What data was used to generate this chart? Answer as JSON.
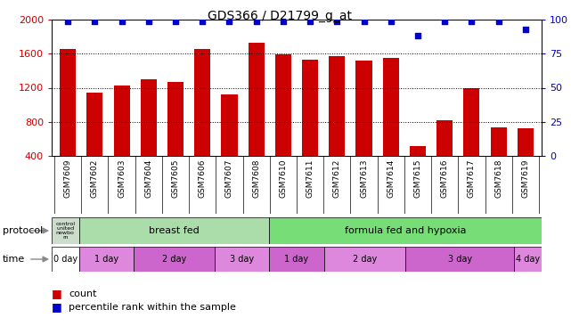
{
  "title": "GDS366 / D21799_g_at",
  "samples": [
    "GSM7609",
    "GSM7602",
    "GSM7603",
    "GSM7604",
    "GSM7605",
    "GSM7606",
    "GSM7607",
    "GSM7608",
    "GSM7610",
    "GSM7611",
    "GSM7612",
    "GSM7613",
    "GSM7614",
    "GSM7615",
    "GSM7616",
    "GSM7617",
    "GSM7618",
    "GSM7619"
  ],
  "counts": [
    1660,
    1140,
    1230,
    1300,
    1270,
    1650,
    1120,
    1730,
    1590,
    1530,
    1570,
    1520,
    1550,
    520,
    820,
    1190,
    730,
    720
  ],
  "percentiles": [
    99,
    99,
    99,
    99,
    99,
    99,
    99,
    99,
    99,
    99,
    99,
    99,
    99,
    88,
    99,
    99,
    99,
    93
  ],
  "bar_color": "#cc0000",
  "dot_color": "#0000cc",
  "ylim_left": [
    400,
    2000
  ],
  "ylim_right": [
    0,
    100
  ],
  "yticks_left": [
    400,
    800,
    1200,
    1600,
    2000
  ],
  "yticks_right": [
    0,
    25,
    50,
    75,
    100
  ],
  "protocol_row": {
    "control_label": "control\nunited\nnewbo\nrn",
    "groups": [
      {
        "label": "breast fed",
        "start": 1,
        "end": 8,
        "color": "#aaddaa"
      },
      {
        "label": "formula fed and hypoxia",
        "start": 8,
        "end": 18,
        "color": "#77dd77"
      }
    ]
  },
  "time_row": {
    "segments": [
      {
        "label": "0 day",
        "start": 0,
        "end": 1,
        "color": "#ffffff"
      },
      {
        "label": "1 day",
        "start": 1,
        "end": 3,
        "color": "#dd88dd"
      },
      {
        "label": "2 day",
        "start": 3,
        "end": 6,
        "color": "#cc66cc"
      },
      {
        "label": "3 day",
        "start": 6,
        "end": 8,
        "color": "#dd88dd"
      },
      {
        "label": "1 day",
        "start": 8,
        "end": 10,
        "color": "#cc66cc"
      },
      {
        "label": "2 day",
        "start": 10,
        "end": 13,
        "color": "#dd88dd"
      },
      {
        "label": "3 day",
        "start": 13,
        "end": 17,
        "color": "#cc66cc"
      },
      {
        "label": "4 day",
        "start": 17,
        "end": 18,
        "color": "#dd88dd"
      }
    ]
  },
  "background_color": "#ffffff",
  "tick_label_color_left": "#cc0000",
  "tick_label_color_right": "#0000cc",
  "xtick_bg": "#dddddd",
  "fig_width": 6.41,
  "fig_height": 3.66,
  "dpi": 100
}
